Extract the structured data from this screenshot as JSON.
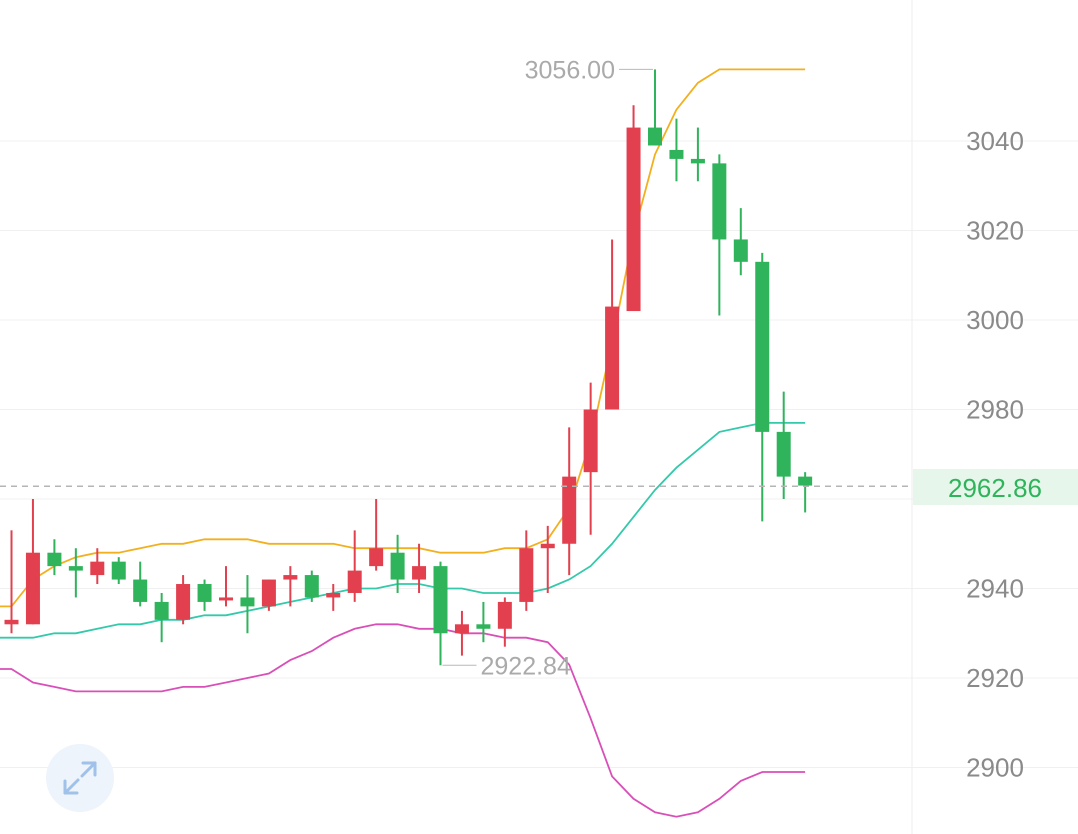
{
  "colors": {
    "up": "#e2404f",
    "down": "#2fb35b",
    "upper_band": "#f2b01e",
    "middle_band": "#33c9aa",
    "lower_band": "#d94fb8",
    "grid": "#f0f0f0",
    "axis_text": "#8a8a8a",
    "current_price_bg": "#e6f6ea",
    "current_price_text": "#2fb35b",
    "dashed_line": "#b5b5b5",
    "expand_icon": "#9fc1ea"
  },
  "chart_data": {
    "type": "candlestick",
    "y_axis": {
      "ticks": [
        "3040",
        "3020",
        "3000",
        "2980",
        "2940",
        "2920",
        "2900"
      ],
      "tick_values": [
        3040,
        3020,
        3000,
        2980,
        2940,
        2920,
        2900
      ],
      "position": "right"
    },
    "y_range": [
      2889,
      3059
    ],
    "current_price": {
      "value": 2962.86,
      "label": "2962.86"
    },
    "high_marker": {
      "value": 3056.0,
      "label": "3056.00"
    },
    "low_marker": {
      "value": 2922.84,
      "label": "2922.84"
    },
    "candles": [
      {
        "o": 2932,
        "h": 2953,
        "l": 2930,
        "c": 2933
      },
      {
        "o": 2932,
        "h": 2960,
        "l": 2932,
        "c": 2948
      },
      {
        "o": 2948,
        "h": 2951,
        "l": 2943,
        "c": 2945
      },
      {
        "o": 2945,
        "h": 2949,
        "l": 2938,
        "c": 2944
      },
      {
        "o": 2943,
        "h": 2949,
        "l": 2941,
        "c": 2946
      },
      {
        "o": 2946,
        "h": 2947,
        "l": 2941,
        "c": 2942
      },
      {
        "o": 2942,
        "h": 2946,
        "l": 2936,
        "c": 2937
      },
      {
        "o": 2937,
        "h": 2939,
        "l": 2928,
        "c": 2933
      },
      {
        "o": 2933,
        "h": 2943,
        "l": 2932,
        "c": 2941
      },
      {
        "o": 2941,
        "h": 2942,
        "l": 2935,
        "c": 2937
      },
      {
        "o": 2938,
        "h": 2945,
        "l": 2936,
        "c": 2938
      },
      {
        "o": 2938,
        "h": 2943,
        "l": 2930,
        "c": 2936
      },
      {
        "o": 2936,
        "h": 2942,
        "l": 2935,
        "c": 2942
      },
      {
        "o": 2942,
        "h": 2945,
        "l": 2936,
        "c": 2943
      },
      {
        "o": 2943,
        "h": 2944,
        "l": 2937,
        "c": 2938
      },
      {
        "o": 2938,
        "h": 2941,
        "l": 2935,
        "c": 2939
      },
      {
        "o": 2939,
        "h": 2953,
        "l": 2937,
        "c": 2944
      },
      {
        "o": 2945,
        "h": 2960,
        "l": 2944,
        "c": 2949
      },
      {
        "o": 2948,
        "h": 2952,
        "l": 2939,
        "c": 2942
      },
      {
        "o": 2942,
        "h": 2950,
        "l": 2939,
        "c": 2945
      },
      {
        "o": 2945,
        "h": 2946,
        "l": 2922.84,
        "c": 2930
      },
      {
        "o": 2930,
        "h": 2935,
        "l": 2925,
        "c": 2932
      },
      {
        "o": 2932,
        "h": 2937,
        "l": 2928,
        "c": 2931
      },
      {
        "o": 2931,
        "h": 2938,
        "l": 2927,
        "c": 2937
      },
      {
        "o": 2937,
        "h": 2953,
        "l": 2935,
        "c": 2949
      },
      {
        "o": 2949,
        "h": 2954,
        "l": 2939,
        "c": 2950
      },
      {
        "o": 2950,
        "h": 2976,
        "l": 2943,
        "c": 2965
      },
      {
        "o": 2966,
        "h": 2986,
        "l": 2952,
        "c": 2980
      },
      {
        "o": 2980,
        "h": 3018,
        "l": 2980,
        "c": 3003
      },
      {
        "o": 3002,
        "h": 3048,
        "l": 3002,
        "c": 3043
      },
      {
        "o": 3043,
        "h": 3056,
        "l": 3039,
        "c": 3039
      },
      {
        "o": 3038,
        "h": 3045,
        "l": 3031,
        "c": 3036
      },
      {
        "o": 3036,
        "h": 3043,
        "l": 3031,
        "c": 3035
      },
      {
        "o": 3035,
        "h": 3037,
        "l": 3001,
        "c": 3018
      },
      {
        "o": 3018,
        "h": 3025,
        "l": 3010,
        "c": 3013
      },
      {
        "o": 3013,
        "h": 3015,
        "l": 2955,
        "c": 2975
      },
      {
        "o": 2975,
        "h": 2984,
        "l": 2960,
        "c": 2965
      },
      {
        "o": 2965,
        "h": 2966,
        "l": 2957,
        "c": 2963
      }
    ],
    "bollinger": {
      "upper": [
        2936,
        2942,
        2945,
        2947,
        2948,
        2948,
        2949,
        2950,
        2950,
        2951,
        2951,
        2951,
        2950,
        2950,
        2950,
        2950,
        2949,
        2949,
        2949,
        2949,
        2948,
        2948,
        2948,
        2949,
        2949,
        2951,
        2958,
        2973,
        2995,
        3019,
        3037,
        3047,
        3053,
        3056,
        3056,
        3056,
        3056,
        3056
      ],
      "middle": [
        2929,
        2929,
        2930,
        2930,
        2931,
        2932,
        2932,
        2933,
        2933,
        2934,
        2934,
        2935,
        2936,
        2937,
        2938,
        2939,
        2940,
        2940,
        2941,
        2941,
        2940,
        2940,
        2939,
        2939,
        2939,
        2940,
        2942,
        2945,
        2950,
        2956,
        2962,
        2967,
        2971,
        2975,
        2976,
        2977,
        2977,
        2977
      ],
      "lower": [
        2922,
        2919,
        2918,
        2917,
        2917,
        2917,
        2917,
        2917,
        2918,
        2918,
        2919,
        2920,
        2921,
        2924,
        2926,
        2929,
        2931,
        2932,
        2932,
        2931,
        2931,
        2930,
        2930,
        2929,
        2929,
        2928,
        2923,
        2911,
        2898,
        2893,
        2890,
        2889,
        2890,
        2893,
        2897,
        2899,
        2899,
        2899
      ]
    }
  }
}
